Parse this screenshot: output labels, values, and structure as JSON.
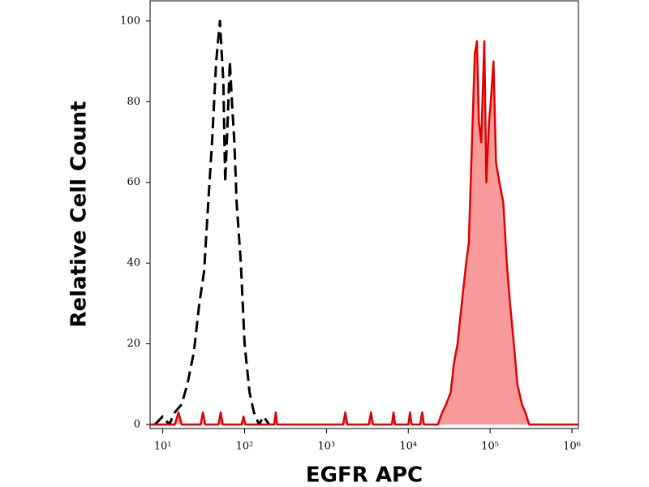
{
  "chart_data": {
    "type": "histogram-overlay",
    "x_label": "EGFR APC",
    "y_label": "Relative Cell Count",
    "xscale": "log",
    "xlim": [
      7,
      1200000
    ],
    "xticks": [
      {
        "value": 10,
        "label": "10¹"
      },
      {
        "value": 100,
        "label": "10²"
      },
      {
        "value": 1000,
        "label": "10³"
      },
      {
        "value": 10000,
        "label": "10⁴"
      },
      {
        "value": 100000,
        "label": "10⁵"
      },
      {
        "value": 1000000,
        "label": "10⁶"
      }
    ],
    "ylim": [
      -1,
      105
    ],
    "yticks": [
      0,
      20,
      40,
      60,
      80,
      100
    ],
    "series": [
      {
        "color": "#000000",
        "linestyle": "dashed",
        "x": [
          8,
          10,
          12,
          14,
          17,
          20,
          24,
          28,
          32,
          36,
          40,
          45,
          50,
          55,
          58,
          62,
          66,
          70,
          75,
          80,
          90,
          100,
          115,
          130,
          150,
          170,
          200
        ],
        "values": [
          0,
          2,
          0,
          3,
          5,
          10,
          18,
          30,
          38,
          55,
          70,
          90,
          100,
          85,
          60,
          75,
          90,
          80,
          70,
          55,
          40,
          20,
          8,
          3,
          0,
          2,
          0
        ]
      },
      {
        "color": "#e00000",
        "fill": "#f99a9a",
        "linestyle": "solid",
        "x": [
          7,
          14,
          15.6,
          17,
          29,
          31,
          33,
          48,
          51,
          54,
          92,
          97,
          102,
          230,
          240,
          250,
          1600,
          1700,
          1800,
          3300,
          3500,
          3700,
          6300,
          6600,
          6900,
          10000,
          10500,
          11000,
          14000,
          14800,
          15500,
          23000,
          26000,
          29000,
          33000,
          36000,
          40000,
          45000,
          51000,
          55000,
          60000,
          65000,
          69000,
          73000,
          78000,
          85000,
          90000,
          97000,
          102000,
          110000,
          118000,
          130000,
          145000,
          160000,
          175000,
          195000,
          215000,
          245000,
          270000,
          300000,
          1200000
        ],
        "values": [
          0,
          0,
          3,
          0,
          0,
          3,
          0,
          0,
          3,
          0,
          0,
          2,
          0,
          0,
          3,
          0,
          0,
          3,
          0,
          0,
          3,
          0,
          0,
          3,
          0,
          0,
          3,
          0,
          0,
          3,
          0,
          0,
          3,
          5,
          8,
          15,
          20,
          30,
          40,
          45,
          70,
          92,
          95,
          75,
          70,
          95,
          60,
          75,
          80,
          90,
          65,
          60,
          55,
          40,
          30,
          20,
          10,
          5,
          3,
          0,
          0
        ]
      }
    ]
  }
}
